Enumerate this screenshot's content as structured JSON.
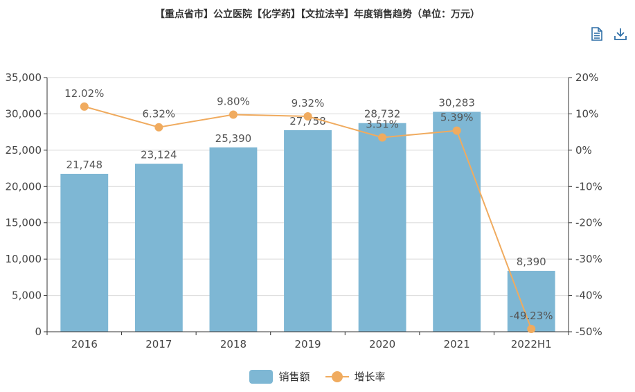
{
  "title": "【重点省市】公立医院【化学药】【文拉法辛】年度销售趋势（单位：万元）",
  "toolbar": {
    "data_view_icon": "document-icon",
    "download_icon": "download-icon",
    "icon_color": "#2f6fa7"
  },
  "colors": {
    "bar": "#7eb7d4",
    "line": "#f0ab5f",
    "axis": "#333333",
    "grid": "#d9d9d9"
  },
  "chart_data": {
    "type": "bar",
    "categories": [
      "2016",
      "2017",
      "2018",
      "2019",
      "2020",
      "2021",
      "2022H1"
    ],
    "series": [
      {
        "name": "销售额",
        "type": "bar",
        "axis": "left",
        "values": [
          21748,
          23124,
          25390,
          27758,
          28732,
          30283,
          8390
        ],
        "labels": [
          "21,748",
          "23,124",
          "25,390",
          "27,758",
          "28,732",
          "30,283",
          "8,390"
        ]
      },
      {
        "name": "增长率",
        "type": "line",
        "axis": "right",
        "values": [
          12.02,
          6.32,
          9.8,
          9.32,
          3.51,
          5.39,
          -49.23
        ],
        "labels": [
          "12.02%",
          "6.32%",
          "9.80%",
          "9.32%",
          "3.51%",
          "5.39%",
          "-49.23%"
        ]
      }
    ],
    "y_left": {
      "ylim": [
        0,
        35000
      ],
      "ticks": [
        0,
        5000,
        10000,
        15000,
        20000,
        25000,
        30000,
        35000
      ],
      "tick_labels": [
        "0",
        "5,000",
        "10,000",
        "15,000",
        "20,000",
        "25,000",
        "30,000",
        "35,000"
      ]
    },
    "y_right": {
      "ylim": [
        -50,
        20
      ],
      "ticks": [
        -50,
        -40,
        -30,
        -20,
        -10,
        0,
        10,
        20
      ],
      "tick_labels": [
        "-50%",
        "-40%",
        "-30%",
        "-20%",
        "-10%",
        "0%",
        "10%",
        "20%"
      ]
    },
    "grid": true,
    "legend": "bottom-center"
  }
}
